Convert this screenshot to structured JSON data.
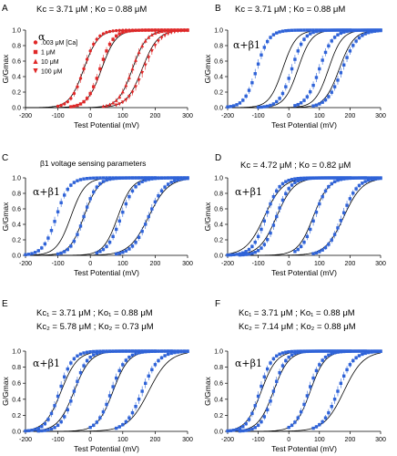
{
  "figure": {
    "colors": {
      "alpha": "#e02828",
      "beta": "#2f63d8",
      "fit": "#000000",
      "axis": "#000000"
    },
    "ylabel": "G/Gmax",
    "xlabel": "Test Potential (mV)"
  },
  "chart_data": [
    {
      "panel": "A",
      "type": "line",
      "color": "#e02828",
      "marker": "mixed",
      "params_line1": "Kᴄ = 3.71 μM  ;  Kᴏ = 0.88 μM",
      "params_line2": "",
      "subtitle": "",
      "condition": "α",
      "legend": {
        "title": "[Ca]",
        "items": [
          ".003 μM [Ca]",
          "1 μM",
          "10 μM",
          "100 μM"
        ],
        "markers": [
          "circle",
          "square",
          "triangle",
          "down-triangle"
        ]
      },
      "xlim": [
        -200,
        300
      ],
      "ylim": [
        0,
        1.0
      ],
      "xticks": [
        -200,
        -100,
        0,
        100,
        200,
        300
      ],
      "yticks": [
        0.0,
        0.2,
        0.4,
        0.6,
        0.8,
        1.0
      ],
      "series": [
        {
          "v_half": -20,
          "slope": 20,
          "x_range": [
            -100,
            300
          ]
        },
        {
          "v_half": 30,
          "slope": 20,
          "x_range": [
            -60,
            300
          ]
        },
        {
          "v_half": 130,
          "slope": 22,
          "x_range": [
            40,
            300
          ]
        },
        {
          "v_half": 165,
          "slope": 25,
          "x_range": [
            80,
            300
          ]
        }
      ],
      "fits": [
        {
          "v_half": -20,
          "slope": 22
        },
        {
          "v_half": 35,
          "slope": 22
        },
        {
          "v_half": 130,
          "slope": 22
        },
        {
          "v_half": 160,
          "slope": 24
        }
      ]
    },
    {
      "panel": "B",
      "type": "line",
      "color": "#2f63d8",
      "marker": "square",
      "params_line1": "Kᴄ = 3.71 μM  ;  Kᴏ = 0.88 μM",
      "params_line2": "",
      "subtitle": "",
      "condition": "α+β1",
      "legend": null,
      "xlim": [
        -200,
        300
      ],
      "ylim": [
        0,
        1.0
      ],
      "xticks": [
        -200,
        -100,
        0,
        100,
        200,
        300
      ],
      "yticks": [
        0.0,
        0.2,
        0.4,
        0.6,
        0.8,
        1.0
      ],
      "series": [
        {
          "v_half": -105,
          "slope": 20,
          "x_range": [
            -200,
            200
          ]
        },
        {
          "v_half": 10,
          "slope": 20,
          "x_range": [
            -100,
            300
          ]
        },
        {
          "v_half": 100,
          "slope": 22,
          "x_range": [
            20,
            300
          ]
        },
        {
          "v_half": 175,
          "slope": 25,
          "x_range": [
            80,
            300
          ]
        }
      ],
      "fits": [
        {
          "v_half": -20,
          "slope": 22
        },
        {
          "v_half": 30,
          "slope": 22
        },
        {
          "v_half": 130,
          "slope": 22
        },
        {
          "v_half": 165,
          "slope": 24
        }
      ]
    },
    {
      "panel": "C",
      "type": "line",
      "color": "#2f63d8",
      "marker": "square",
      "params_line1": "",
      "params_line2": "",
      "subtitle": "β1 voltage sensing parameters",
      "condition": "α+β1",
      "legend": null,
      "xlim": [
        -200,
        300
      ],
      "ylim": [
        0,
        1.0
      ],
      "xticks": [
        -200,
        -100,
        0,
        100,
        200,
        300
      ],
      "yticks": [
        0.0,
        0.2,
        0.4,
        0.6,
        0.8,
        1.0
      ],
      "series": [
        {
          "v_half": -105,
          "slope": 20,
          "x_range": [
            -200,
            200
          ]
        },
        {
          "v_half": -20,
          "slope": 20,
          "x_range": [
            -100,
            300
          ]
        },
        {
          "v_half": 95,
          "slope": 22,
          "x_range": [
            20,
            300
          ]
        },
        {
          "v_half": 180,
          "slope": 25,
          "x_range": [
            80,
            300
          ]
        }
      ],
      "fits": [
        {
          "v_half": -60,
          "slope": 22
        },
        {
          "v_half": -20,
          "slope": 22
        },
        {
          "v_half": 85,
          "slope": 22
        },
        {
          "v_half": 180,
          "slope": 30
        }
      ]
    },
    {
      "panel": "D",
      "type": "line",
      "color": "#2f63d8",
      "marker": "square",
      "params_line1": "Kᴄ = 4.72 μM  ;  Kᴏ = 0.82 μM",
      "params_line2": "",
      "subtitle": "",
      "condition": "α+β1",
      "legend": null,
      "xlim": [
        -200,
        300
      ],
      "ylim": [
        0,
        1.0
      ],
      "xticks": [
        -200,
        -100,
        0,
        100,
        200,
        300
      ],
      "yticks": [
        0.0,
        0.2,
        0.4,
        0.6,
        0.8,
        1.0
      ],
      "series": [
        {
          "v_half": -75,
          "slope": 22,
          "x_range": [
            -200,
            200
          ]
        },
        {
          "v_half": -40,
          "slope": 22,
          "x_range": [
            -160,
            250
          ]
        },
        {
          "v_half": 85,
          "slope": 22,
          "x_range": [
            20,
            300
          ]
        },
        {
          "v_half": 175,
          "slope": 25,
          "x_range": [
            80,
            300
          ]
        }
      ],
      "fits": [
        {
          "v_half": -80,
          "slope": 30
        },
        {
          "v_half": -40,
          "slope": 28
        },
        {
          "v_half": 80,
          "slope": 25
        },
        {
          "v_half": 180,
          "slope": 30
        }
      ]
    },
    {
      "panel": "E",
      "type": "line",
      "color": "#2f63d8",
      "marker": "square",
      "params_line1": "Kᴄ₁ = 3.71 μM  ;  Kᴏ₁ = 0.88 μM",
      "params_line2": "Kᴄ₂ = 5.78 μM  ;  Kᴏ₂ = 0.73 μM",
      "subtitle": "",
      "condition": "α+β1",
      "legend": null,
      "xlim": [
        -200,
        300
      ],
      "ylim": [
        0,
        1.0
      ],
      "xticks": [
        -200,
        -100,
        0,
        100,
        200,
        300
      ],
      "yticks": [
        0.0,
        0.2,
        0.4,
        0.6,
        0.8,
        1.0
      ],
      "series": [
        {
          "v_half": -95,
          "slope": 20,
          "x_range": [
            -200,
            200
          ]
        },
        {
          "v_half": -50,
          "slope": 20,
          "x_range": [
            -160,
            250
          ]
        },
        {
          "v_half": 65,
          "slope": 22,
          "x_range": [
            0,
            300
          ]
        },
        {
          "v_half": 160,
          "slope": 25,
          "x_range": [
            80,
            300
          ]
        }
      ],
      "fits": [
        {
          "v_half": -90,
          "slope": 25
        },
        {
          "v_half": -50,
          "slope": 25
        },
        {
          "v_half": 70,
          "slope": 24
        },
        {
          "v_half": 180,
          "slope": 32
        }
      ]
    },
    {
      "panel": "F",
      "type": "line",
      "color": "#2f63d8",
      "marker": "square",
      "params_line1": "Kᴄ₁ = 3.71 μM  ;  Kᴏ₁ = 0.88 μM",
      "params_line2": "Kᴄ₂ = 7.14 μM  ;  Kᴏ₂ = 0.88 μM",
      "subtitle": "",
      "condition": "α+β1",
      "legend": null,
      "xlim": [
        -200,
        300
      ],
      "ylim": [
        0,
        1.0
      ],
      "xticks": [
        -200,
        -100,
        0,
        100,
        200,
        300
      ],
      "yticks": [
        0.0,
        0.2,
        0.4,
        0.6,
        0.8,
        1.0
      ],
      "series": [
        {
          "v_half": -95,
          "slope": 20,
          "x_range": [
            -200,
            200
          ]
        },
        {
          "v_half": -50,
          "slope": 20,
          "x_range": [
            -160,
            250
          ]
        },
        {
          "v_half": 65,
          "slope": 22,
          "x_range": [
            0,
            300
          ]
        },
        {
          "v_half": 160,
          "slope": 25,
          "x_range": [
            80,
            300
          ]
        }
      ],
      "fits": [
        {
          "v_half": -90,
          "slope": 25
        },
        {
          "v_half": -50,
          "slope": 25
        },
        {
          "v_half": 70,
          "slope": 24
        },
        {
          "v_half": 180,
          "slope": 32
        }
      ]
    }
  ]
}
